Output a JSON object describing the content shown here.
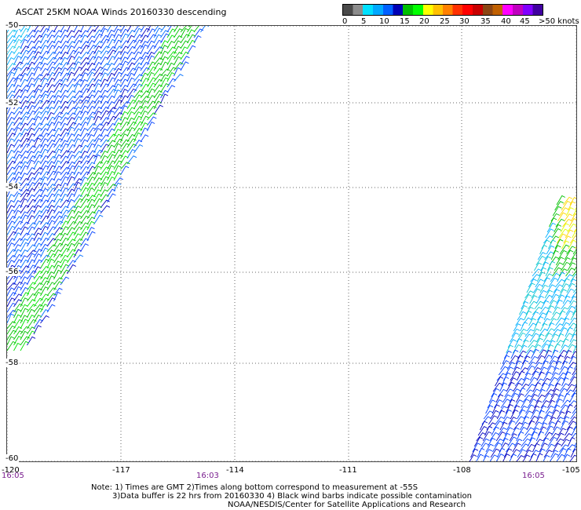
{
  "title": "ASCAT 25KM NOAA Winds 20160330 descending",
  "legend": {
    "colors": [
      "#4a4a4a",
      "#8c8c8c",
      "#00e0ff",
      "#00a8ff",
      "#0060ff",
      "#0000b4",
      "#00c000",
      "#00ff00",
      "#ffff00",
      "#ffc000",
      "#ff8000",
      "#ff3000",
      "#ff0000",
      "#c80000",
      "#8b4513",
      "#c06000",
      "#ff00ff",
      "#c000c0",
      "#8000ff",
      "#4000a0"
    ],
    "labels": [
      "0",
      "5",
      "10",
      "15",
      "20",
      "25",
      "30",
      "35",
      "40",
      "45",
      ">50 knots"
    ]
  },
  "map": {
    "lat_labels": [
      "-50",
      "-52",
      "-54",
      "-56",
      "-58",
      "-60"
    ],
    "lon_labels": [
      "-120",
      "-117",
      "-114",
      "-111",
      "-108",
      "-105"
    ],
    "times": [
      "16:05",
      "16:03",
      "16:05"
    ]
  },
  "notes": {
    "line1": "Note: 1) Times are GMT 2)Times along bottom correspond to measurement at -55S",
    "line2": "3)Data buffer is 22 hrs from 20160330 4) Black wind barbs indicate possible contamination",
    "line3": "NOAA/NESDIS/Center for Satellite Applications and Research"
  }
}
